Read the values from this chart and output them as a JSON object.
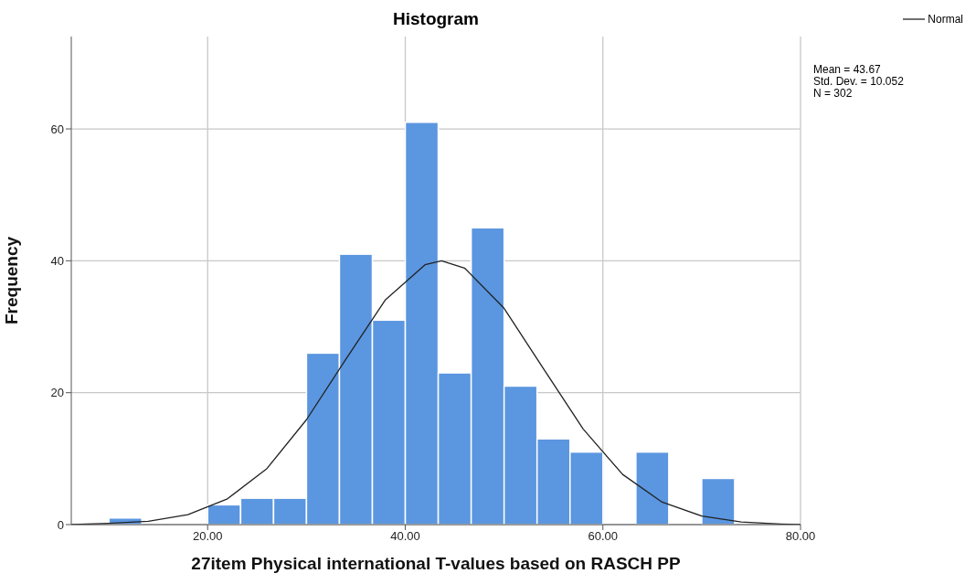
{
  "chart_data": {
    "type": "histogram",
    "title": "Histogram",
    "xlabel": "27item Physical international T-values based on RASCH PP",
    "ylabel": "Frequency",
    "bins": [
      10,
      13.33,
      16.67,
      20,
      23.33,
      26.67,
      30,
      33.33,
      36.67,
      40,
      43.33,
      46.67,
      50,
      53.33,
      56.67,
      60,
      63.33,
      66.67,
      70,
      73.33
    ],
    "values": [
      1,
      0,
      0,
      3,
      4,
      4,
      26,
      41,
      31,
      61,
      23,
      45,
      21,
      13,
      11,
      0,
      11,
      0,
      7
    ],
    "color": "#5b96e0",
    "series": [
      {
        "name": "Normal",
        "type": "line",
        "color": "#222222",
        "x": [
          6.2,
          10,
          14,
          18,
          22,
          26,
          30,
          34,
          38,
          42,
          43.67,
          46,
          50,
          54,
          58,
          62,
          66,
          70,
          74,
          78,
          80
        ],
        "values": [
          0,
          0.2,
          0.5,
          1.5,
          3.9,
          8.5,
          15.9,
          25.1,
          34.1,
          39.4,
          40,
          38.9,
          32.8,
          23.6,
          14.5,
          7.6,
          3.4,
          1.3,
          0.4,
          0.1,
          0
        ]
      }
    ],
    "xlim": [
      6.2,
      80
    ],
    "xticks": [
      {
        "value": 20,
        "label": "20.00"
      },
      {
        "value": 40,
        "label": "40.00"
      },
      {
        "value": 60,
        "label": "60.00"
      },
      {
        "value": 80,
        "label": "80.00"
      }
    ],
    "ylim": [
      0,
      74
    ],
    "yticks": [
      0,
      20,
      40,
      60
    ],
    "grid": true,
    "legend": "top right",
    "annotations": [
      "Mean = 43.67",
      "Std. Dev. = 10.052",
      "N = 302"
    ]
  }
}
